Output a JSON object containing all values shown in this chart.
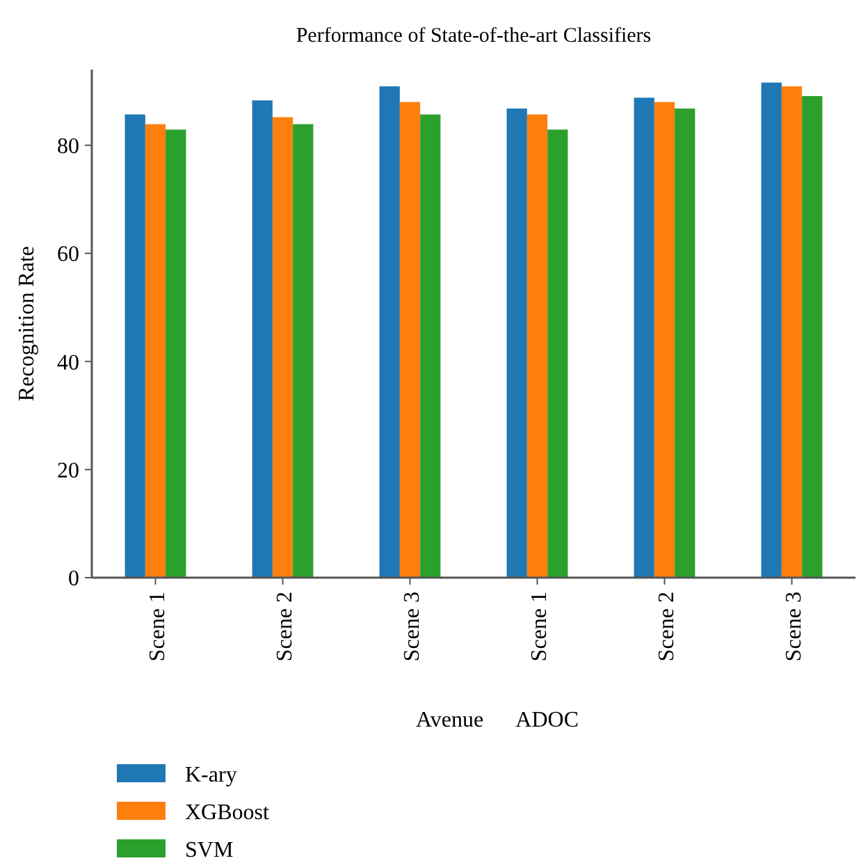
{
  "chart_data": {
    "type": "bar",
    "title": "Performance of State-of-the-art Classifiers",
    "xlabel": "Avenue      ADOC",
    "ylabel": "Recognition Rate",
    "categories": [
      "Scene 1",
      "Scene 2",
      "Scene 3",
      "Scene 1",
      "Scene 2",
      "Scene 3"
    ],
    "series": [
      {
        "name": "K-ary",
        "color": "#1f77b4",
        "values": [
          85.7,
          88.3,
          90.9,
          86.8,
          88.8,
          91.6
        ]
      },
      {
        "name": "XGBoost",
        "color": "#ff7f0e",
        "values": [
          83.9,
          85.2,
          88.0,
          85.7,
          88.0,
          90.9
        ]
      },
      {
        "name": "SVM",
        "color": "#2ca02c",
        "values": [
          82.9,
          83.9,
          85.7,
          82.9,
          86.8,
          89.1
        ]
      }
    ],
    "ylim": [
      0,
      94
    ],
    "yticks": [
      0,
      20,
      40,
      60,
      80
    ],
    "legend": "bottom left",
    "grid": false
  }
}
